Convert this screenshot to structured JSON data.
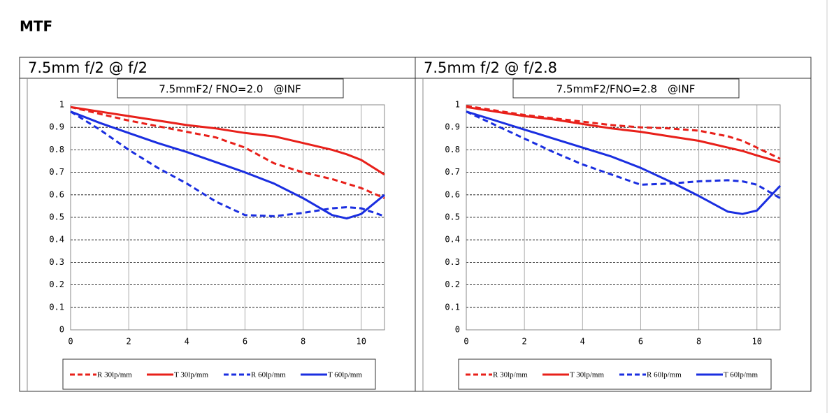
{
  "page_title": "MTF",
  "chart_data": [
    {
      "type": "line",
      "title": "7.5mm f/2 @ f/2",
      "subtitle": "7.5mmF2/ FNO=2.0　@INF",
      "x": [
        0,
        1,
        2,
        3,
        4,
        5,
        6,
        7,
        8,
        9,
        9.5,
        10,
        10.8
      ],
      "xlim": [
        0,
        10.8
      ],
      "xticks": [
        0,
        2,
        4,
        6,
        8,
        10
      ],
      "ylim": [
        0,
        1
      ],
      "yticks": [
        0,
        0.1,
        0.2,
        0.3,
        0.4,
        0.5,
        0.6,
        0.7,
        0.8,
        0.9,
        1
      ],
      "grid": true,
      "series": [
        {
          "name": "R 30lp/mm",
          "color": "#e8201a",
          "dashed": true,
          "values": [
            0.99,
            0.96,
            0.93,
            0.905,
            0.88,
            0.855,
            0.81,
            0.74,
            0.7,
            0.67,
            0.65,
            0.63,
            0.585
          ]
        },
        {
          "name": "T 30lp/mm",
          "color": "#e8201a",
          "dashed": false,
          "values": [
            0.99,
            0.97,
            0.95,
            0.93,
            0.91,
            0.895,
            0.875,
            0.86,
            0.83,
            0.8,
            0.78,
            0.755,
            0.69
          ]
        },
        {
          "name": "R 60lp/mm",
          "color": "#1a2ee0",
          "dashed": true,
          "values": [
            0.97,
            0.89,
            0.8,
            0.72,
            0.65,
            0.57,
            0.51,
            0.505,
            0.52,
            0.54,
            0.545,
            0.54,
            0.505
          ]
        },
        {
          "name": "T 60lp/mm",
          "color": "#1a2ee0",
          "dashed": false,
          "values": [
            0.97,
            0.92,
            0.875,
            0.83,
            0.79,
            0.745,
            0.7,
            0.65,
            0.585,
            0.51,
            0.495,
            0.515,
            0.6
          ]
        }
      ]
    },
    {
      "type": "line",
      "title": "7.5mm f/2 @ f/2.8",
      "subtitle": "7.5mmF2/FNO=2.8　@INF",
      "x": [
        0,
        1,
        2,
        3,
        4,
        5,
        6,
        7,
        8,
        9,
        9.5,
        10,
        10.8
      ],
      "xlim": [
        0,
        10.8
      ],
      "xticks": [
        0,
        2,
        4,
        6,
        8,
        10
      ],
      "ylim": [
        0,
        1
      ],
      "yticks": [
        0,
        0.1,
        0.2,
        0.3,
        0.4,
        0.5,
        0.6,
        0.7,
        0.8,
        0.9,
        1
      ],
      "grid": true,
      "series": [
        {
          "name": "R 30lp/mm",
          "color": "#e8201a",
          "dashed": true,
          "values": [
            0.995,
            0.975,
            0.955,
            0.94,
            0.925,
            0.91,
            0.9,
            0.895,
            0.885,
            0.86,
            0.84,
            0.81,
            0.76
          ]
        },
        {
          "name": "T 30lp/mm",
          "color": "#e8201a",
          "dashed": false,
          "values": [
            0.99,
            0.97,
            0.95,
            0.935,
            0.915,
            0.895,
            0.88,
            0.86,
            0.84,
            0.81,
            0.795,
            0.775,
            0.745
          ]
        },
        {
          "name": "R 60lp/mm",
          "color": "#1a2ee0",
          "dashed": true,
          "values": [
            0.97,
            0.91,
            0.85,
            0.79,
            0.735,
            0.69,
            0.645,
            0.65,
            0.66,
            0.665,
            0.66,
            0.645,
            0.585
          ]
        },
        {
          "name": "T 60lp/mm",
          "color": "#1a2ee0",
          "dashed": false,
          "values": [
            0.97,
            0.93,
            0.89,
            0.85,
            0.81,
            0.77,
            0.72,
            0.66,
            0.595,
            0.525,
            0.515,
            0.53,
            0.64
          ]
        }
      ]
    }
  ]
}
